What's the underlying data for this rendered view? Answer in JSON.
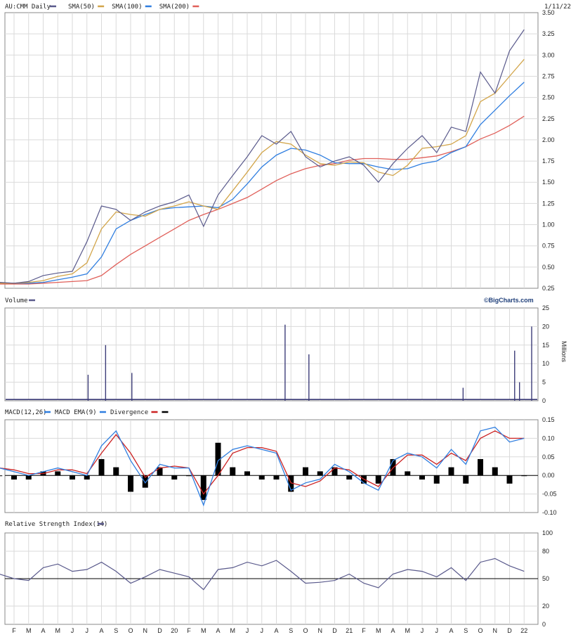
{
  "header": {
    "symbol_label": "AU:CMM Daily",
    "date_label": "1/11/22",
    "legend": [
      {
        "label": "SMA(50)",
        "color": "#d2a54a"
      },
      {
        "label": "SMA(100)",
        "color": "#2f7ee0"
      },
      {
        "label": "SMA(200)",
        "color": "#e0605a"
      }
    ],
    "price_line_color": "#5a5a8c"
  },
  "volume_panel": {
    "title": "Volume",
    "brand": "©BigCharts.com",
    "unit": "Millions"
  },
  "macd_panel": {
    "title": "MACD(12,26)",
    "legend": [
      {
        "label": "MACD EMA(9)",
        "color": "#2f7ee0"
      },
      {
        "label": "Divergence",
        "color": "#cc2222"
      },
      {
        "label": "",
        "color": "#000000"
      }
    ]
  },
  "rsi_panel": {
    "title": "Relative Strength Index(14)"
  },
  "x_axis": {
    "labels": [
      "F",
      "M",
      "A",
      "M",
      "J",
      "J",
      "A",
      "S",
      "O",
      "N",
      "D",
      "20",
      "F",
      "M",
      "A",
      "M",
      "J",
      "J",
      "A",
      "S",
      "O",
      "N",
      "D",
      "21",
      "F",
      "M",
      "A",
      "M",
      "J",
      "J",
      "A",
      "S",
      "O",
      "N",
      "D",
      "22"
    ]
  },
  "chart_data": [
    {
      "type": "line",
      "title": "AU:CMM Daily",
      "x_range": [
        "2019-01-11",
        "2022-01-11"
      ],
      "ylim": [
        0.25,
        3.5
      ],
      "y_ticks": [
        "3.50",
        "3.25",
        "3.00",
        "2.75",
        "2.50",
        "2.25",
        "2.00",
        "1.75",
        "1.50",
        "1.25",
        "1.00",
        "0.75",
        "0.50",
        "0.25"
      ],
      "grid": true,
      "x": [
        "2019-01",
        "2019-02",
        "2019-03",
        "2019-04",
        "2019-05",
        "2019-06",
        "2019-07",
        "2019-08",
        "2019-09",
        "2019-10",
        "2019-11",
        "2019-12",
        "2020-01",
        "2020-02",
        "2020-03",
        "2020-04",
        "2020-05",
        "2020-06",
        "2020-07",
        "2020-08",
        "2020-09",
        "2020-10",
        "2020-11",
        "2020-12",
        "2021-01",
        "2021-02",
        "2021-03",
        "2021-04",
        "2021-05",
        "2021-06",
        "2021-07",
        "2021-08",
        "2021-09",
        "2021-10",
        "2021-11",
        "2021-12",
        "2022-01"
      ],
      "series": [
        {
          "name": "AU:CMM",
          "values": [
            0.32,
            0.31,
            0.33,
            0.4,
            0.43,
            0.45,
            0.8,
            1.22,
            1.18,
            1.05,
            1.15,
            1.22,
            1.27,
            1.35,
            0.98,
            1.35,
            1.58,
            1.8,
            2.05,
            1.95,
            2.1,
            1.8,
            1.68,
            1.75,
            1.8,
            1.7,
            1.5,
            1.72,
            1.9,
            2.05,
            1.85,
            2.15,
            2.1,
            2.8,
            2.55,
            3.05,
            3.3
          ]
        },
        {
          "name": "SMA(50)",
          "values": [
            0.31,
            0.31,
            0.32,
            0.34,
            0.39,
            0.42,
            0.55,
            0.95,
            1.15,
            1.12,
            1.1,
            1.18,
            1.22,
            1.27,
            1.22,
            1.18,
            1.4,
            1.62,
            1.85,
            1.98,
            1.95,
            1.82,
            1.72,
            1.7,
            1.74,
            1.73,
            1.62,
            1.58,
            1.7,
            1.9,
            1.92,
            1.95,
            2.05,
            2.45,
            2.55,
            2.75,
            2.95
          ]
        },
        {
          "name": "SMA(100)",
          "values": [
            0.31,
            0.31,
            0.31,
            0.32,
            0.35,
            0.38,
            0.42,
            0.62,
            0.95,
            1.05,
            1.12,
            1.18,
            1.2,
            1.21,
            1.22,
            1.2,
            1.3,
            1.48,
            1.68,
            1.82,
            1.9,
            1.88,
            1.82,
            1.73,
            1.72,
            1.72,
            1.68,
            1.65,
            1.66,
            1.72,
            1.75,
            1.85,
            1.92,
            2.18,
            2.35,
            2.52,
            2.68
          ]
        },
        {
          "name": "SMA(200)",
          "values": [
            0.3,
            0.3,
            0.3,
            0.31,
            0.32,
            0.33,
            0.34,
            0.4,
            0.53,
            0.65,
            0.75,
            0.85,
            0.95,
            1.05,
            1.12,
            1.18,
            1.25,
            1.32,
            1.42,
            1.52,
            1.6,
            1.66,
            1.7,
            1.72,
            1.76,
            1.78,
            1.78,
            1.77,
            1.77,
            1.79,
            1.81,
            1.86,
            1.92,
            2.01,
            2.08,
            2.17,
            2.28
          ]
        }
      ]
    },
    {
      "type": "bar",
      "title": "Volume",
      "ylabel": "Millions",
      "ylim": [
        0,
        25
      ],
      "y_ticks": [
        "25",
        "20",
        "15",
        "10",
        "5",
        "0"
      ],
      "grid": true,
      "baseline_level": 0.5,
      "spikes": [
        {
          "date": "2019-07-01",
          "value": 7
        },
        {
          "date": "2019-08-06",
          "value": 15
        },
        {
          "date": "2019-09-29",
          "value": 7.5
        },
        {
          "date": "2020-08-09",
          "value": 20.5
        },
        {
          "date": "2020-09-27",
          "value": 12.5
        },
        {
          "date": "2021-11-24",
          "value": 13.5
        },
        {
          "date": "2021-12-29",
          "value": 20
        },
        {
          "date": "2021-12-04",
          "value": 5
        },
        {
          "date": "2021-08-10",
          "value": 3.5
        }
      ]
    },
    {
      "type": "line",
      "title": "MACD(12,26)",
      "ylim": [
        -0.1,
        0.15
      ],
      "y_ticks": [
        "0.15",
        "0.10",
        "0.05",
        "0.00",
        "-0.05",
        "-0.10"
      ],
      "grid": true,
      "x": [
        "2019-01",
        "2019-02",
        "2019-03",
        "2019-04",
        "2019-05",
        "2019-06",
        "2019-07",
        "2019-08",
        "2019-09",
        "2019-10",
        "2019-11",
        "2019-12",
        "2020-01",
        "2020-02",
        "2020-03",
        "2020-04",
        "2020-05",
        "2020-06",
        "2020-07",
        "2020-08",
        "2020-09",
        "2020-10",
        "2020-11",
        "2020-12",
        "2021-01",
        "2021-02",
        "2021-03",
        "2021-04",
        "2021-05",
        "2021-06",
        "2021-07",
        "2021-08",
        "2021-09",
        "2021-10",
        "2021-11",
        "2021-12",
        "2022-01"
      ],
      "series": [
        {
          "name": "MACD(12,26)",
          "values": [
            0.02,
            0.01,
            0.0,
            0.01,
            0.02,
            0.01,
            0.0,
            0.08,
            0.12,
            0.04,
            -0.02,
            0.03,
            0.02,
            0.02,
            -0.08,
            0.04,
            0.07,
            0.08,
            0.07,
            0.06,
            -0.04,
            -0.02,
            -0.01,
            0.03,
            0.01,
            -0.02,
            -0.04,
            0.04,
            0.06,
            0.05,
            0.02,
            0.07,
            0.03,
            0.12,
            0.13,
            0.09,
            0.1
          ]
        },
        {
          "name": "MACD EMA(9)",
          "values": [
            0.02,
            0.015,
            0.005,
            0.005,
            0.015,
            0.015,
            0.005,
            0.06,
            0.11,
            0.06,
            -0.005,
            0.02,
            0.025,
            0.02,
            -0.05,
            0.0,
            0.06,
            0.075,
            0.075,
            0.065,
            -0.02,
            -0.03,
            -0.015,
            0.02,
            0.015,
            -0.01,
            -0.03,
            0.02,
            0.055,
            0.055,
            0.03,
            0.06,
            0.04,
            0.1,
            0.12,
            0.1,
            0.1
          ]
        }
      ]
    },
    {
      "type": "line",
      "title": "Relative Strength Index(14)",
      "ylim": [
        0,
        100
      ],
      "y_ticks": [
        "100",
        "80",
        "50",
        "20",
        "0"
      ],
      "grid": true,
      "reference_line": 50,
      "x": [
        "2019-01",
        "2019-02",
        "2019-03",
        "2019-04",
        "2019-05",
        "2019-06",
        "2019-07",
        "2019-08",
        "2019-09",
        "2019-10",
        "2019-11",
        "2019-12",
        "2020-01",
        "2020-02",
        "2020-03",
        "2020-04",
        "2020-05",
        "2020-06",
        "2020-07",
        "2020-08",
        "2020-09",
        "2020-10",
        "2020-11",
        "2020-12",
        "2021-01",
        "2021-02",
        "2021-03",
        "2021-04",
        "2021-05",
        "2021-06",
        "2021-07",
        "2021-08",
        "2021-09",
        "2021-10",
        "2021-11",
        "2021-12",
        "2022-01"
      ],
      "series": [
        {
          "name": "RSI(14)",
          "values": [
            55,
            50,
            48,
            62,
            66,
            58,
            60,
            68,
            58,
            45,
            52,
            60,
            56,
            52,
            38,
            60,
            62,
            68,
            64,
            70,
            58,
            45,
            46,
            48,
            55,
            45,
            40,
            55,
            60,
            58,
            52,
            62,
            48,
            68,
            72,
            64,
            58
          ]
        }
      ]
    }
  ]
}
